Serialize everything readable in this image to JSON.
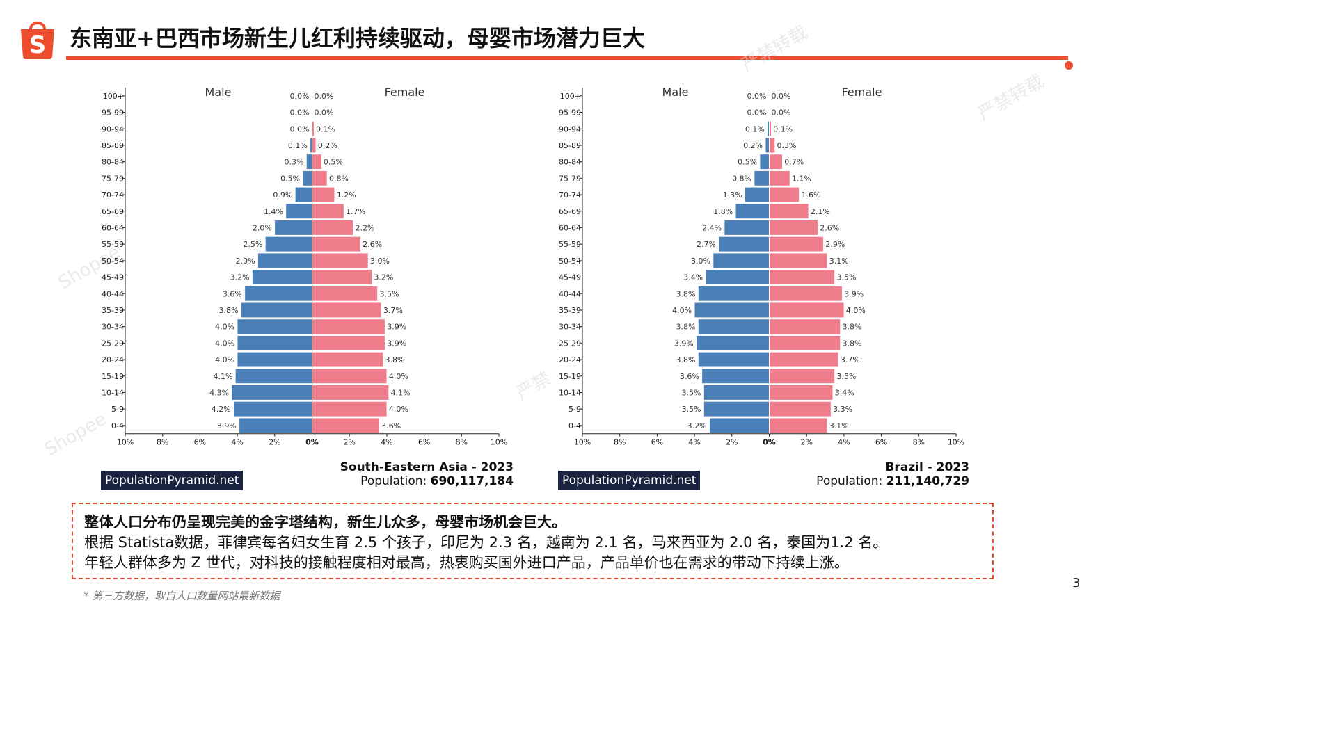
{
  "header": {
    "title": "东南亚+巴西市场新生儿红利持续驱动，母婴市场潜力巨大",
    "brand_color": "#ee4d2d",
    "logo_icon": "shopee-bag-icon",
    "logo_letter": "S"
  },
  "page_number": "3",
  "chart_data": [
    {
      "type": "bar",
      "subtype": "population-pyramid",
      "region": "South-Eastern Asia - 2023",
      "population_label": "Population:",
      "population_value": "690,117,184",
      "source_label": "PopulationPyramid.net",
      "male_label": "Male",
      "female_label": "Female",
      "male_color": "#4a7fb8",
      "female_color": "#ef7d8c",
      "categories": [
        "100+",
        "95-99",
        "90-94",
        "85-89",
        "80-84",
        "75-79",
        "70-74",
        "65-69",
        "60-64",
        "55-59",
        "50-54",
        "45-49",
        "40-44",
        "35-39",
        "30-34",
        "25-29",
        "20-24",
        "15-19",
        "10-14",
        "5-9",
        "0-4"
      ],
      "series": [
        {
          "name": "Male",
          "values": [
            0.0,
            0.0,
            0.0,
            0.1,
            0.3,
            0.5,
            0.9,
            1.4,
            2.0,
            2.5,
            2.9,
            3.2,
            3.6,
            3.8,
            4.0,
            4.0,
            4.0,
            4.1,
            4.3,
            4.2,
            3.9
          ]
        },
        {
          "name": "Female",
          "values": [
            0.0,
            0.0,
            0.1,
            0.2,
            0.5,
            0.8,
            1.2,
            1.7,
            2.2,
            2.6,
            3.0,
            3.2,
            3.5,
            3.7,
            3.9,
            3.9,
            3.8,
            4.0,
            4.1,
            4.0,
            3.6
          ]
        }
      ],
      "x_ticks": [
        "10%",
        "8%",
        "6%",
        "4%",
        "2%",
        "0%",
        "2%",
        "4%",
        "6%",
        "8%",
        "10%"
      ],
      "xlim": [
        -10,
        10
      ]
    },
    {
      "type": "bar",
      "subtype": "population-pyramid",
      "region": "Brazil - 2023",
      "population_label": "Population:",
      "population_value": "211,140,729",
      "source_label": "PopulationPyramid.net",
      "male_label": "Male",
      "female_label": "Female",
      "male_color": "#4a7fb8",
      "female_color": "#ef7d8c",
      "categories": [
        "100+",
        "95-99",
        "90-94",
        "85-89",
        "80-84",
        "75-79",
        "70-74",
        "65-69",
        "60-64",
        "55-59",
        "50-54",
        "45-49",
        "40-44",
        "35-39",
        "30-34",
        "25-29",
        "20-24",
        "15-19",
        "10-14",
        "5-9",
        "0-4"
      ],
      "series": [
        {
          "name": "Male",
          "values": [
            0.0,
            0.0,
            0.1,
            0.2,
            0.5,
            0.8,
            1.3,
            1.8,
            2.4,
            2.7,
            3.0,
            3.4,
            3.8,
            4.0,
            3.8,
            3.9,
            3.8,
            3.6,
            3.5,
            3.5,
            3.2
          ]
        },
        {
          "name": "Female",
          "values": [
            0.0,
            0.0,
            0.1,
            0.3,
            0.7,
            1.1,
            1.6,
            2.1,
            2.6,
            2.9,
            3.1,
            3.5,
            3.9,
            4.0,
            3.8,
            3.8,
            3.7,
            3.5,
            3.4,
            3.3,
            3.1
          ]
        }
      ],
      "x_ticks": [
        "10%",
        "8%",
        "6%",
        "4%",
        "2%",
        "0%",
        "2%",
        "4%",
        "6%",
        "8%",
        "10%"
      ],
      "xlim": [
        -10,
        10
      ]
    }
  ],
  "summary": {
    "headline": "整体人口分布仍呈现完美的金字塔结构，新生儿众多，母婴市场机会巨大。",
    "line1": "根据 Statista数据，菲律宾每名妇女生育 2.5 个孩子，印尼为 2.3 名，越南为 2.1 名，马来西亚为 2.0 名，泰国为1.2 名。",
    "line2": "年轻人群体多为 Z 世代，对科技的接触程度相对最高，热衷购买国外进口产品，产品单价也在需求的带动下持续上涨。",
    "border_color": "#e8472a"
  },
  "footnote": "* 第三方数据，取自人口数量网站最新数据",
  "watermarks": [
    "严禁转载",
    "严禁转载",
    "Shopee",
    "Shopee",
    "严禁",
    "严禁转载"
  ]
}
